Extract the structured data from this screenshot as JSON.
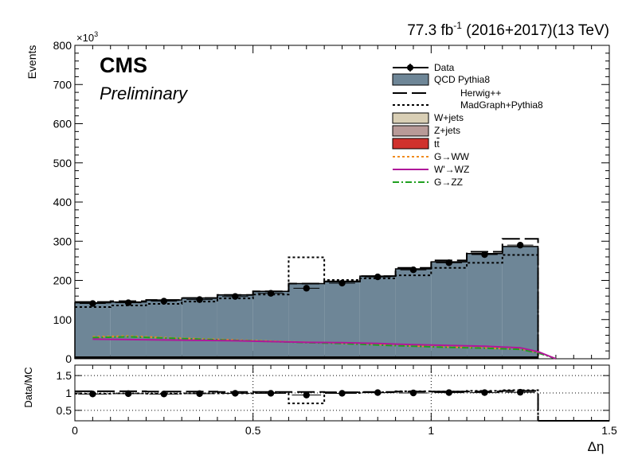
{
  "header": {
    "lumi_value": "77.3 fb",
    "lumi_exp": "-1",
    "lumi_rest": " (2016+2017)(13 TeV)"
  },
  "labels": {
    "cms": "CMS",
    "preliminary": "Preliminary",
    "y_multiplier_base": "×10",
    "y_multiplier_exp": "3"
  },
  "legend": {
    "data": "Data",
    "qcd": "QCD Pythia8",
    "herwig": "Herwig++",
    "madgraph": "MadGraph+Pythia8",
    "wjets": "W+jets",
    "zjets": "Z+jets",
    "ttbar_t": "t",
    "ttbar_tbar": "t",
    "g_ww": "G→WW",
    "wp_wz": "W'→WZ",
    "g_zz": "G→ZZ"
  },
  "colors": {
    "qcd": "#6e8697",
    "wjets": "#d9cfb5",
    "zjets": "#b89a98",
    "ttbar": "#d0312d",
    "g_ww": "#f08b1d",
    "wp_wz": "#b0179a",
    "g_zz": "#20a020"
  },
  "chart_data": [
    {
      "type": "histogram",
      "title": "",
      "ylabel": "Events",
      "xlim": [
        0,
        1.5
      ],
      "ylim": [
        0,
        800000
      ],
      "y_ticks": [
        0,
        100,
        200,
        300,
        400,
        500,
        600,
        700,
        800
      ],
      "y_tick_scale": 1000,
      "x_ticks": [
        0,
        0.5,
        1,
        1.5
      ],
      "bin_edges": [
        0,
        0.1,
        0.2,
        0.3,
        0.4,
        0.5,
        0.6,
        0.7,
        0.8,
        0.9,
        1.0,
        1.1,
        1.2,
        1.3
      ],
      "data": [
        141000,
        143000,
        147000,
        151000,
        159000,
        167000,
        180000,
        193000,
        209000,
        227000,
        245000,
        266000,
        290000
      ],
      "qcd_pythia8": [
        137000,
        139000,
        144000,
        149000,
        157000,
        166000,
        186000,
        192000,
        205000,
        224000,
        242000,
        263000,
        281000
      ],
      "herwig": [
        145000,
        147000,
        150000,
        155000,
        163000,
        172000,
        192000,
        197000,
        211000,
        232000,
        251000,
        273000,
        306000
      ],
      "madgraph_pythia8": [
        132000,
        136000,
        140000,
        146000,
        154000,
        164000,
        259000,
        201000,
        205000,
        213000,
        232000,
        245000,
        265000
      ],
      "wjets": [
        2000,
        2000,
        2000,
        2000,
        2000,
        2000,
        2000,
        2000,
        2000,
        2000,
        2000,
        2000,
        2000
      ],
      "zjets": [
        1500,
        1500,
        1500,
        1500,
        1500,
        1500,
        1500,
        1500,
        1500,
        1500,
        1500,
        1500,
        1500
      ],
      "ttbar": [
        2500,
        2500,
        2500,
        2500,
        2500,
        2500,
        2500,
        2500,
        2500,
        2000,
        2000,
        2000,
        2000
      ],
      "signal_x": [
        0.05,
        0.15,
        0.25,
        0.35,
        0.45,
        0.55,
        0.65,
        0.75,
        0.85,
        0.95,
        1.05,
        1.15,
        1.25,
        1.3,
        1.35
      ],
      "g_ww": [
        56000,
        58000,
        54000,
        51000,
        48000,
        45000,
        42000,
        40000,
        37000,
        33000,
        30000,
        28000,
        25000,
        17000,
        0
      ],
      "wp_wz": [
        50000,
        49000,
        48000,
        47000,
        46000,
        44000,
        42000,
        41000,
        39000,
        36000,
        34000,
        32000,
        28000,
        18000,
        0
      ],
      "g_zz": [
        54000,
        56000,
        53000,
        50000,
        47000,
        44000,
        41000,
        39000,
        35000,
        32000,
        29000,
        27000,
        24000,
        15000,
        0
      ]
    },
    {
      "type": "ratio",
      "ylabel": "Data/MC",
      "xlabel": "Δη",
      "xlim": [
        0,
        1.5
      ],
      "ylim": [
        0.2,
        1.8
      ],
      "y_ticks": [
        0.5,
        1,
        1.5
      ],
      "x_ticks": [
        0,
        0.5,
        1,
        1.5
      ],
      "bin_edges": [
        0,
        0.1,
        0.2,
        0.3,
        0.4,
        0.5,
        0.6,
        0.7,
        0.8,
        0.9,
        1.0,
        1.1,
        1.2,
        1.3
      ],
      "data_over_qcd": [
        0.97,
        0.98,
        0.97,
        0.98,
        0.99,
        0.99,
        0.94,
        0.99,
        1.01,
        1.0,
        1.01,
        1.01,
        1.02
      ],
      "herwig_over_qcd": [
        1.05,
        1.05,
        1.04,
        1.04,
        1.03,
        1.03,
        1.03,
        1.02,
        1.03,
        1.04,
        1.04,
        1.04,
        1.06
      ],
      "madgraph_over_qcd": [
        0.98,
        0.99,
        0.98,
        0.99,
        0.99,
        1.0,
        0.7,
        1.0,
        1.02,
        1.05,
        1.04,
        1.06,
        1.08
      ]
    }
  ]
}
